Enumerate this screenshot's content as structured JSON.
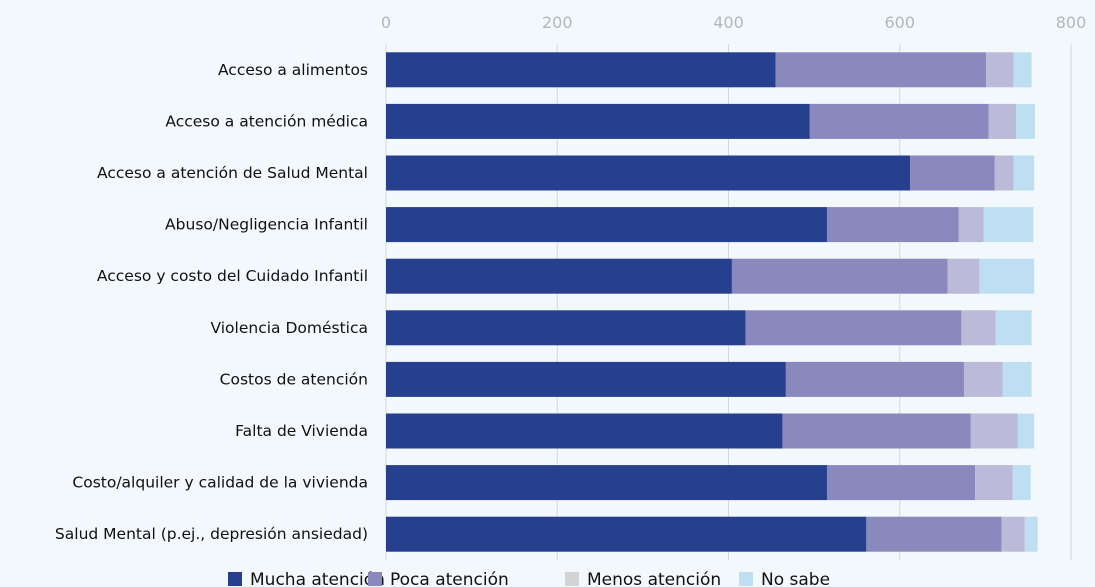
{
  "chart_data": {
    "type": "bar",
    "orientation": "horizontal",
    "stacked": true,
    "title": "",
    "xlabel": "",
    "ylabel": "",
    "xlim": [
      0,
      800
    ],
    "xticks": [
      "0",
      "200",
      "400",
      "600",
      "800"
    ],
    "grid": true,
    "legend_position": "bottom",
    "categories": [
      "Acceso a alimentos",
      "Acceso a atención médica",
      "Acceso a atención de Salud Mental",
      "Abuso/Negligencia Infantil",
      "Acceso y costo del Cuidado Infantil",
      "Violencia Doméstica",
      "Costos de atención",
      "Falta de Vivienda",
      "Costo/alquiler y calidad de la vivienda",
      "Salud Mental (p.ej., depresión ansiedad)"
    ],
    "series": [
      {
        "name": "Mucha atención",
        "color": "#263f8e",
        "values": [
          455,
          495,
          612,
          515,
          404,
          420,
          467,
          463,
          515,
          561
        ]
      },
      {
        "name": "Poca atención",
        "color": "#8a89bd",
        "values": [
          246,
          209,
          99,
          154,
          252,
          252,
          208,
          220,
          173,
          158
        ]
      },
      {
        "name": "Menos atención",
        "color": "#bbbad9",
        "values": [
          32,
          32,
          22,
          29,
          37,
          40,
          45,
          55,
          44,
          27
        ]
      },
      {
        "name": "No sabe",
        "color": "#bedff1",
        "values": [
          21,
          22,
          24,
          58,
          64,
          42,
          34,
          19,
          21,
          15
        ]
      }
    ],
    "legend_swatch_colors": [
      "#263f8e",
      "#8a89bd",
      "#d3d3d3",
      "#bedff1"
    ]
  }
}
